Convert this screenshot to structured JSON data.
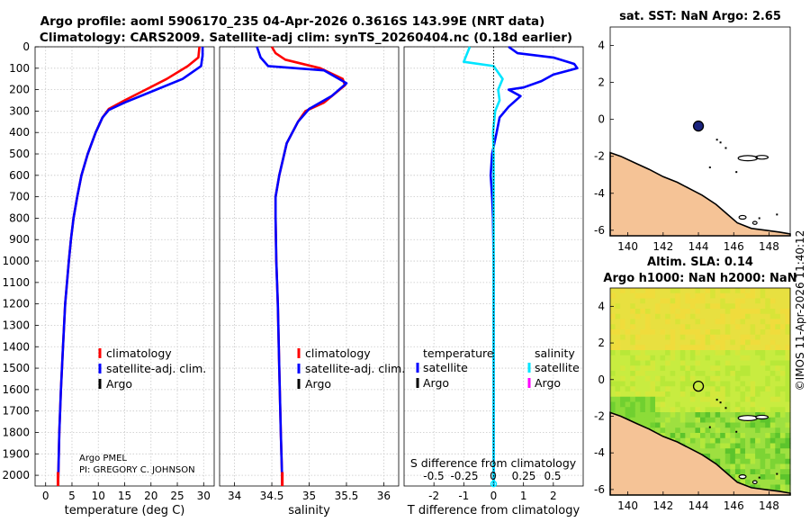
{
  "title": {
    "line1": "Argo profile: aoml 5906170_235 04-Apr-2026 0.3616S 143.99E (NRT data)",
    "line2": "Climatology: CARS2009. Satellite-adj clim: synTS_20260404.nc (0.18d earlier)"
  },
  "colors": {
    "climatology": "#ff0000",
    "satellite_adj": "#0000ff",
    "argo": "#000000",
    "satellite_s": "#00e5ff",
    "argo_s": "#ff00ff",
    "land": "#f5c396"
  },
  "chart_data": [
    {
      "type": "line",
      "id": "temperature",
      "xlabel": "temperature (deg C)",
      "xlim": [
        -2,
        32
      ],
      "xticks": [
        0,
        5,
        10,
        15,
        20,
        25,
        30
      ],
      "ylim": [
        0,
        2050
      ],
      "yticks": [
        0,
        100,
        200,
        300,
        400,
        500,
        600,
        700,
        800,
        900,
        1000,
        1100,
        1200,
        1300,
        1400,
        1500,
        1600,
        1700,
        1800,
        1900,
        2000
      ],
      "legend": [
        "climatology",
        "satellite-adj. clim.",
        "Argo"
      ],
      "annotations": [
        "Argo PMEL",
        "PI: GREGORY C. JOHNSON"
      ],
      "series": [
        {
          "name": "climatology",
          "color": "#ff0000",
          "points": [
            [
              29.2,
              0
            ],
            [
              29.0,
              50
            ],
            [
              27.0,
              90
            ],
            [
              23.0,
              150
            ],
            [
              19.0,
              200
            ],
            [
              15.0,
              250
            ],
            [
              12.0,
              290
            ],
            [
              10.8,
              330
            ],
            [
              9.5,
              400
            ],
            [
              8.0,
              500
            ],
            [
              6.8,
              600
            ],
            [
              6.0,
              700
            ],
            [
              5.3,
              800
            ],
            [
              4.8,
              900
            ],
            [
              4.4,
              1000
            ],
            [
              3.7,
              1200
            ],
            [
              3.3,
              1400
            ],
            [
              2.9,
              1600
            ],
            [
              2.6,
              1800
            ],
            [
              2.4,
              2000
            ],
            [
              2.35,
              2050
            ]
          ]
        },
        {
          "name": "satellite-adj. clim.",
          "color": "#0000ff",
          "points": [
            [
              29.8,
              0
            ],
            [
              29.8,
              40
            ],
            [
              29.5,
              90
            ],
            [
              26.0,
              150
            ],
            [
              20.0,
              210
            ],
            [
              15.0,
              260
            ],
            [
              12.0,
              295
            ],
            [
              10.8,
              330
            ],
            [
              9.5,
              400
            ],
            [
              8.0,
              500
            ],
            [
              6.8,
              600
            ],
            [
              6.0,
              700
            ],
            [
              5.3,
              800
            ],
            [
              4.8,
              900
            ],
            [
              4.4,
              1000
            ],
            [
              3.7,
              1200
            ],
            [
              3.3,
              1400
            ],
            [
              2.9,
              1600
            ],
            [
              2.6,
              1800
            ],
            [
              2.4,
              2000
            ],
            [
              2.35,
              2050
            ]
          ]
        }
      ]
    },
    {
      "type": "line",
      "id": "salinity",
      "xlabel": "salinity",
      "xlim": [
        33.8,
        36.2
      ],
      "xticks": [
        34,
        34.5,
        35,
        35.5,
        36
      ],
      "ylim": [
        0,
        2050
      ],
      "legend": [
        "climatology",
        "satellite-adj. clim.",
        "Argo"
      ],
      "series": [
        {
          "name": "climatology",
          "color": "#ff0000",
          "points": [
            [
              34.5,
              0
            ],
            [
              34.55,
              30
            ],
            [
              34.68,
              60
            ],
            [
              35.15,
              100
            ],
            [
              35.45,
              150
            ],
            [
              35.48,
              180
            ],
            [
              35.2,
              260
            ],
            [
              34.95,
              300
            ],
            [
              34.85,
              350
            ],
            [
              34.7,
              450
            ],
            [
              34.6,
              600
            ],
            [
              34.55,
              700
            ],
            [
              34.55,
              800
            ],
            [
              34.56,
              1000
            ],
            [
              34.58,
              1200
            ],
            [
              34.6,
              1500
            ],
            [
              34.62,
              1800
            ],
            [
              34.64,
              2050
            ]
          ]
        },
        {
          "name": "satellite-adj. clim.",
          "color": "#0000ff",
          "points": [
            [
              34.3,
              0
            ],
            [
              34.35,
              50
            ],
            [
              34.45,
              90
            ],
            [
              35.2,
              110
            ],
            [
              35.5,
              170
            ],
            [
              35.3,
              230
            ],
            [
              35.0,
              290
            ],
            [
              34.85,
              350
            ],
            [
              34.7,
              450
            ],
            [
              34.6,
              600
            ],
            [
              34.55,
              700
            ],
            [
              34.55,
              800
            ],
            [
              34.56,
              1000
            ],
            [
              34.58,
              1200
            ],
            [
              34.6,
              1500
            ],
            [
              34.62,
              1800
            ],
            [
              34.64,
              2050
            ]
          ]
        }
      ]
    },
    {
      "type": "line",
      "id": "difference",
      "xlabel": "T difference from climatology",
      "xlabel_top": "S difference from climatology",
      "xlim": [
        -3,
        3
      ],
      "xticks": [
        -2,
        -1,
        0,
        1,
        2
      ],
      "xticks_s": [
        "-0.5",
        "-0.25",
        "0",
        "0.25",
        "0.5"
      ],
      "ylim": [
        0,
        2050
      ],
      "legend_headers": [
        "temperature",
        "salinity"
      ],
      "legend_t": [
        "satellite",
        "Argo"
      ],
      "legend_s": [
        "satellite",
        "Argo"
      ],
      "series": [
        {
          "name": "T satellite",
          "color": "#0000ff",
          "points": [
            [
              0.5,
              0
            ],
            [
              0.8,
              30
            ],
            [
              2.0,
              50
            ],
            [
              2.7,
              80
            ],
            [
              2.8,
              100
            ],
            [
              2.0,
              130
            ],
            [
              1.6,
              160
            ],
            [
              1.0,
              190
            ],
            [
              0.5,
              200
            ],
            [
              0.9,
              230
            ],
            [
              0.5,
              280
            ],
            [
              0.2,
              330
            ],
            [
              0.1,
              400
            ],
            [
              -0.05,
              500
            ],
            [
              -0.1,
              600
            ],
            [
              -0.05,
              700
            ],
            [
              -0.02,
              800
            ],
            [
              0,
              1000
            ],
            [
              0,
              2050
            ]
          ]
        },
        {
          "name": "S satellite",
          "color": "#00e5ff",
          "points": [
            [
              -0.8,
              0
            ],
            [
              -1.0,
              70
            ],
            [
              0,
              90
            ],
            [
              0.3,
              150
            ],
            [
              0.15,
              200
            ],
            [
              0.2,
              250
            ],
            [
              0.05,
              300
            ],
            [
              -0.02,
              400
            ],
            [
              0,
              500
            ],
            [
              0,
              2050
            ]
          ]
        }
      ]
    },
    {
      "type": "map",
      "id": "sst",
      "title": "sat. SST: NaN Argo: 2.65",
      "xlim": [
        139,
        149.2
      ],
      "ylim": [
        -6.3,
        5
      ],
      "xticks": [
        140,
        142,
        144,
        146,
        148
      ],
      "yticks": [
        4,
        2,
        0,
        -2,
        -4,
        -6
      ],
      "argo_position": [
        144.0,
        -0.36
      ]
    },
    {
      "type": "map",
      "id": "sla",
      "title_line1": "Altim. SLA: 0.14",
      "title_line2": "Argo h1000: NaN h2000: NaN",
      "xlim": [
        139,
        149.2
      ],
      "ylim": [
        -6.3,
        5
      ],
      "xticks": [
        140,
        142,
        144,
        146,
        148
      ],
      "yticks": [
        4,
        2,
        0,
        -2,
        -4,
        -6
      ],
      "argo_position": [
        144.0,
        -0.36
      ]
    }
  ],
  "footer": "©IMOS 11-Apr-2026 11:40:12"
}
